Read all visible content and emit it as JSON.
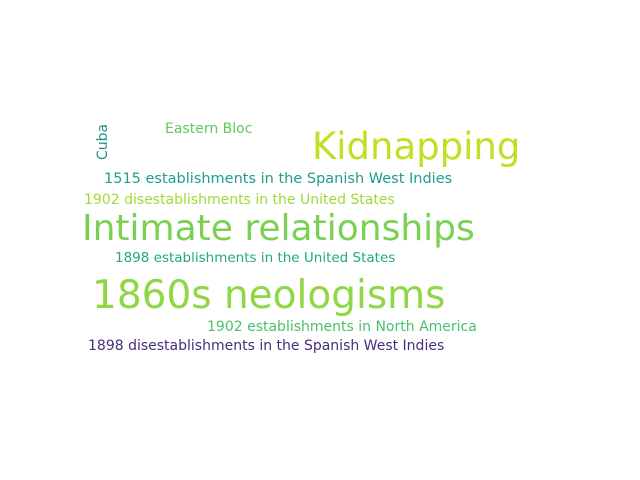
{
  "words": [
    {
      "text": "Cuba",
      "color": "#21918c"
    },
    {
      "text": "Eastern Bloc",
      "color": "#5ec962"
    },
    {
      "text": "Kidnapping",
      "color": "#c2df23"
    },
    {
      "text": "1515 establishments in the Spanish West Indies",
      "color": "#1f9e89"
    },
    {
      "text": "1902 disestablishments in the United States",
      "color": "#a0da39"
    },
    {
      "text": "Intimate relationships",
      "color": "#7ad151"
    },
    {
      "text": "1898 establishments in the United States",
      "color": "#22a884"
    },
    {
      "text": "1860s neologisms",
      "color": "#8fd744"
    },
    {
      "text": "1902 establishments in North America",
      "color": "#4ac16d"
    },
    {
      "text": "1898 disestablishments in the Spanish West Indies",
      "color": "#472d7b"
    }
  ]
}
